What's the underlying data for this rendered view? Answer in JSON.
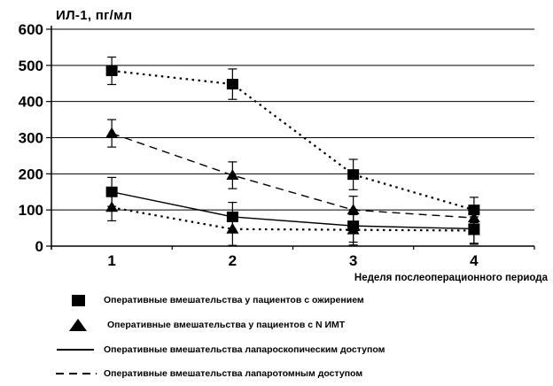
{
  "chart_data": {
    "type": "line",
    "title": "ИЛ-1, пг/мл",
    "xlabel": "Неделя послеоперационного периода",
    "x_categories": [
      "1",
      "2",
      "3",
      "4"
    ],
    "ylim": [
      0,
      600
    ],
    "yticks": [
      0,
      100,
      200,
      300,
      400,
      500,
      600
    ],
    "grid": "horizontal",
    "legend_position": "bottom-left",
    "series": [
      {
        "name": "square-dotted",
        "marker": "square",
        "line_style": "dotted",
        "values": [
          485,
          448,
          198,
          100
        ],
        "errors": [
          38,
          42,
          42,
          35
        ]
      },
      {
        "name": "triangle-dashed",
        "marker": "triangle",
        "line_style": "dashed",
        "values": [
          312,
          196,
          100,
          78
        ],
        "errors": [
          38,
          37,
          38,
          30
        ]
      },
      {
        "name": "square-solid",
        "marker": "square",
        "line_style": "solid",
        "values": [
          150,
          81,
          56,
          48
        ],
        "errors": [
          40,
          40,
          45,
          40
        ]
      },
      {
        "name": "triangle-dotted",
        "marker": "triangle",
        "line_style": "dotted",
        "values": [
          107,
          47,
          45,
          43
        ],
        "errors": [
          37,
          45,
          42,
          38
        ]
      }
    ],
    "legend": [
      {
        "symbol": "square-marker",
        "label": "Оперативные вмешательства  у пациентов с ожирением"
      },
      {
        "symbol": "triangle-marker",
        "label": "Оперативные вмешательства  у пациентов с N  ИМТ"
      },
      {
        "symbol": "solid-line",
        "label": "Оперативные вмешательства  лапароскопическим доступом"
      },
      {
        "symbol": "dashed-line",
        "label": "Оперативные вмешательства  лапаротомным доступом"
      }
    ],
    "colors": {
      "foreground": "#000000",
      "background": "#ffffff"
    }
  }
}
